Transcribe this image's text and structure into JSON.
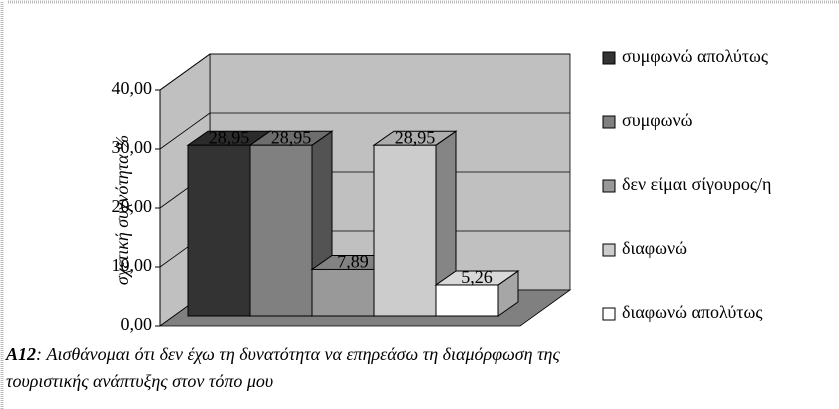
{
  "chart_data": {
    "type": "bar3d",
    "y_label": "σχετική συχνότητα %",
    "ylim": [
      0,
      40
    ],
    "yticks": [
      {
        "value": 0,
        "label": "0,00"
      },
      {
        "value": 10,
        "label": "10,00"
      },
      {
        "value": 20,
        "label": "20,00"
      },
      {
        "value": 30,
        "label": "30,00"
      },
      {
        "value": 40,
        "label": "40,00"
      }
    ],
    "grid": true,
    "legend": "right",
    "series": [
      {
        "name": "συμφωνώ απολύτως",
        "color": "#333333",
        "values": [
          28.95
        ],
        "value_labels": [
          "28,95"
        ]
      },
      {
        "name": "συμφωνώ",
        "color": "#808080",
        "values": [
          28.95
        ],
        "value_labels": [
          "28,95"
        ]
      },
      {
        "name": "δεν είμαι σίγουρος/η",
        "color": "#999999",
        "values": [
          7.89
        ],
        "value_labels": [
          "7,89"
        ]
      },
      {
        "name": "διαφωνώ",
        "color": "#cccccc",
        "values": [
          28.95
        ],
        "value_labels": [
          "28,95"
        ]
      },
      {
        "name": "διαφωνώ απολύτως",
        "color": "#ffffff",
        "values": [
          5.26
        ],
        "value_labels": [
          "5,26"
        ]
      }
    ],
    "caption": {
      "label": "A12",
      "lines": [
        ": Αισθάνομαι ότι δεν έχω τη δυνατότητα να επηρεάσω τη διαμόρφωση της",
        "τουριστικής ανάπτυξης στον τόπο μου"
      ]
    }
  }
}
